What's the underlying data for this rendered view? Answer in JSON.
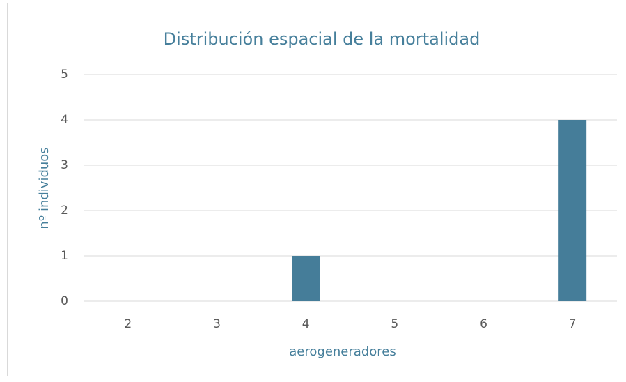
{
  "chart_data": {
    "type": "bar",
    "title": "Distribución espacial de la mortalidad",
    "x_label": "aerogeneradores",
    "y_label": "nº individuos",
    "categories": [
      "2",
      "3",
      "4",
      "5",
      "6",
      "7"
    ],
    "values": [
      0,
      0,
      1,
      0,
      0,
      4
    ],
    "color": "#457d99",
    "ylim": [
      0,
      5
    ],
    "yticks": [
      0,
      1,
      2,
      3,
      4,
      5
    ],
    "grid": true
  }
}
